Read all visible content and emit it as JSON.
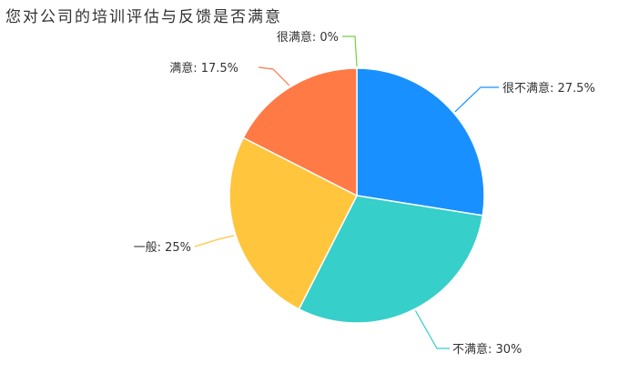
{
  "chart_data": {
    "type": "pie",
    "title": "您对公司的培训评估与反馈是否满意",
    "slices": [
      {
        "name": "很不满意",
        "value": 27.5,
        "label": "很不满意: 27.5%",
        "color": "#1890ff"
      },
      {
        "name": "不满意",
        "value": 30,
        "label": "不满意: 30%",
        "color": "#36cfc9"
      },
      {
        "name": "一般",
        "value": 25,
        "label": "一般: 25%",
        "color": "#ffc53d"
      },
      {
        "name": "满意",
        "value": 17.5,
        "label": "满意: 17.5%",
        "color": "#ff7a45"
      },
      {
        "name": "很满意",
        "value": 0,
        "label": "很满意: 0%",
        "color": "#73d13d"
      }
    ]
  }
}
